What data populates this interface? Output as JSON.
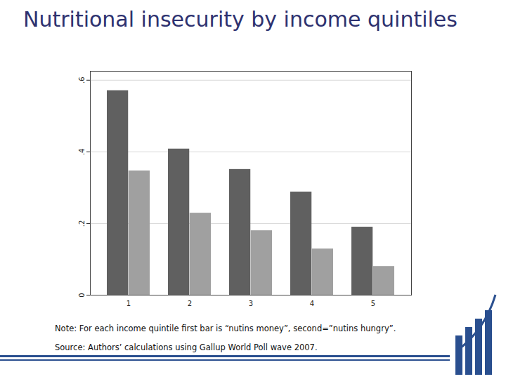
{
  "chart_data": {
    "type": "bar",
    "title": "Nutritional insecurity by income quintiles",
    "categories": [
      "1",
      "2",
      "3",
      "4",
      "5"
    ],
    "series": [
      {
        "color": "#606060",
        "values": [
          0.571,
          0.408,
          0.351,
          0.288,
          0.19
        ]
      },
      {
        "color": "#a0a0a0",
        "values": [
          0.347,
          0.229,
          0.18,
          0.129,
          0.08
        ]
      }
    ],
    "ylim": [
      0,
      0.625
    ],
    "yticks": [
      0,
      {
        "value": 0.2,
        "label": ".2"
      },
      {
        "value": 0.4,
        "label": ".4"
      },
      {
        "value": 0.6,
        "label": ".6"
      }
    ],
    "grid": true,
    "annotations": [
      "Note: For each income quintile first bar is “nutins money”, second=”nutins hungry”.",
      "Source: Authors’ calculations using Gallup World Poll wave 2007."
    ]
  }
}
